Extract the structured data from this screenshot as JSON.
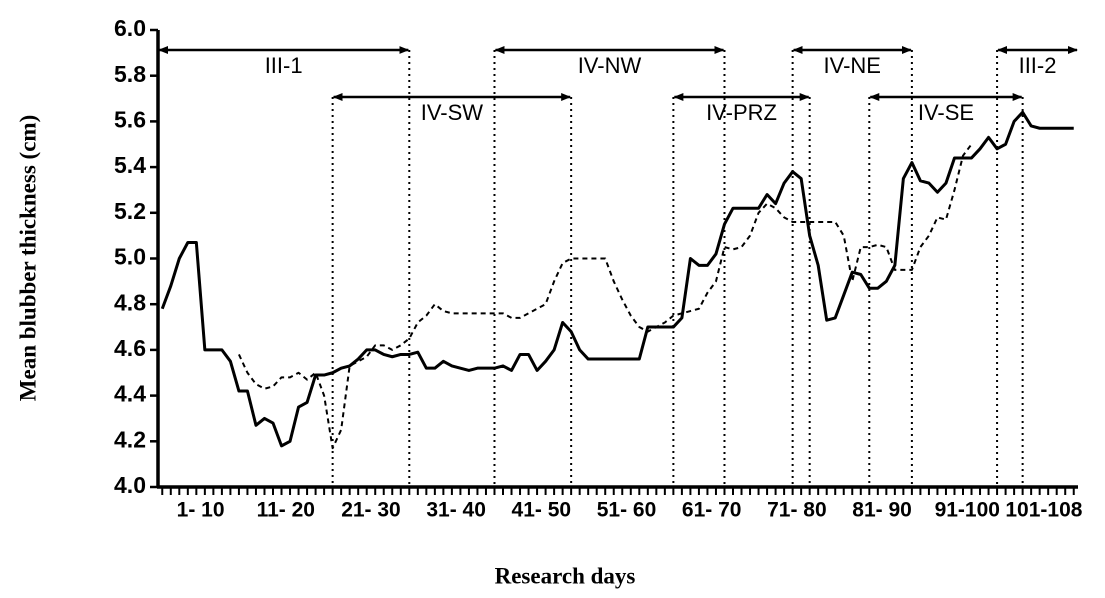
{
  "chart_data": {
    "type": "line",
    "xlabel": "Research days",
    "ylabel": "Mean blubber thickness (cm)",
    "x": [
      1,
      2,
      3,
      4,
      5,
      6,
      7,
      8,
      9,
      10,
      11,
      12,
      13,
      14,
      15,
      16,
      17,
      18,
      19,
      20,
      21,
      22,
      23,
      24,
      25,
      26,
      27,
      28,
      29,
      30,
      31,
      32,
      33,
      34,
      35,
      36,
      37,
      38,
      39,
      40,
      41,
      42,
      43,
      44,
      45,
      46,
      47,
      48,
      49,
      50,
      51,
      52,
      53,
      54,
      55,
      56,
      57,
      58,
      59,
      60,
      61,
      62,
      63,
      64,
      65,
      66,
      67,
      68,
      69,
      70,
      71,
      72,
      73,
      74,
      75,
      76,
      77,
      78,
      79,
      80,
      81,
      82,
      83,
      84,
      85,
      86,
      87,
      88,
      89,
      90,
      91,
      92,
      93,
      94,
      95,
      96,
      97,
      98,
      99,
      100,
      101,
      102,
      103,
      104,
      105,
      106,
      107,
      108
    ],
    "series": [
      {
        "color": "#000000",
        "dashed": false,
        "values": [
          4.78,
          4.88,
          5.0,
          5.07,
          5.07,
          4.6,
          4.6,
          4.6,
          4.55,
          4.42,
          4.42,
          4.27,
          4.3,
          4.28,
          4.18,
          4.2,
          4.35,
          4.37,
          4.49,
          4.49,
          4.5,
          4.52,
          4.53,
          4.56,
          4.6,
          4.6,
          4.58,
          4.57,
          4.58,
          4.58,
          4.59,
          4.52,
          4.52,
          4.55,
          4.53,
          4.52,
          4.51,
          4.52,
          4.52,
          4.52,
          4.53,
          4.51,
          4.58,
          4.58,
          4.51,
          4.55,
          4.6,
          4.72,
          4.68,
          4.6,
          4.56,
          4.56,
          4.56,
          4.56,
          4.56,
          4.56,
          4.56,
          4.7,
          4.7,
          4.7,
          4.7,
          4.74,
          5.0,
          4.97,
          4.97,
          5.02,
          5.15,
          5.22,
          5.22,
          5.22,
          5.22,
          5.28,
          5.24,
          5.33,
          5.38,
          5.35,
          5.1,
          4.97,
          4.73,
          4.74,
          4.84,
          4.94,
          4.93,
          4.87,
          4.87,
          4.9,
          4.97,
          5.35,
          5.42,
          5.34,
          5.33,
          5.29,
          5.33,
          5.44,
          5.44,
          5.44,
          5.48,
          5.53,
          5.48,
          5.5,
          5.6,
          5.64,
          5.58,
          5.57,
          5.57,
          5.57,
          5.57,
          5.57
        ]
      },
      {
        "color": "#000000",
        "dashed": true,
        "values": [
          null,
          null,
          null,
          null,
          null,
          null,
          null,
          null,
          null,
          4.58,
          4.5,
          4.45,
          4.43,
          4.44,
          4.48,
          4.48,
          4.5,
          4.47,
          4.5,
          4.4,
          4.17,
          4.25,
          4.53,
          4.55,
          4.57,
          4.62,
          4.62,
          4.6,
          4.62,
          4.65,
          4.72,
          4.75,
          4.8,
          4.77,
          4.76,
          4.76,
          4.76,
          4.76,
          4.76,
          4.76,
          4.76,
          4.74,
          4.74,
          4.76,
          4.78,
          4.8,
          4.9,
          4.98,
          5.0,
          5.0,
          5.0,
          5.0,
          5.0,
          4.9,
          4.82,
          4.75,
          4.7,
          4.68,
          4.7,
          4.72,
          4.75,
          4.76,
          4.77,
          4.78,
          4.85,
          4.9,
          5.05,
          5.04,
          5.05,
          5.1,
          5.2,
          5.24,
          5.22,
          5.18,
          5.16,
          5.16,
          5.16,
          5.16,
          5.16,
          5.16,
          5.1,
          4.9,
          5.05,
          5.05,
          5.06,
          5.05,
          4.95,
          4.95,
          4.95,
          5.05,
          5.1,
          5.18,
          5.17,
          5.3,
          5.45,
          5.5,
          null,
          null,
          null,
          null,
          null,
          null,
          null,
          null,
          null,
          null,
          null,
          null
        ]
      }
    ],
    "xlim": [
      0.5,
      108.5
    ],
    "xticks": [
      {
        "value": 5.5,
        "label": "1- 10"
      },
      {
        "value": 15.5,
        "label": "11- 20"
      },
      {
        "value": 25.5,
        "label": "21- 30"
      },
      {
        "value": 35.5,
        "label": "31- 40"
      },
      {
        "value": 45.5,
        "label": "41- 50"
      },
      {
        "value": 55.5,
        "label": "51- 60"
      },
      {
        "value": 65.5,
        "label": "61- 70"
      },
      {
        "value": 75.5,
        "label": "71- 80"
      },
      {
        "value": 85.5,
        "label": "81- 90"
      },
      {
        "value": 95.5,
        "label": "91-100"
      },
      {
        "value": 104.5,
        "label": "101-108"
      }
    ],
    "ylim": [
      4.0,
      6.0
    ],
    "yticks": [
      {
        "value": 4.0,
        "label": "4.0"
      },
      {
        "value": 4.2,
        "label": "4.2"
      },
      {
        "value": 4.4,
        "label": "4.4"
      },
      {
        "value": 4.6,
        "label": "4.6"
      },
      {
        "value": 4.8,
        "label": "4.8"
      },
      {
        "value": 5.0,
        "label": "5.0"
      },
      {
        "value": 5.2,
        "label": "5.2"
      },
      {
        "value": 5.4,
        "label": "5.4"
      },
      {
        "value": 5.6,
        "label": "5.6"
      },
      {
        "value": 5.8,
        "label": "5.8"
      },
      {
        "value": 6.0,
        "label": "6.0"
      }
    ],
    "periods": [
      {
        "label": "III-1",
        "start": 0.5,
        "end": 30
      },
      {
        "label": "IV-SW",
        "start": 21,
        "end": 49
      },
      {
        "label": "IV-NW",
        "start": 40,
        "end": 67
      },
      {
        "label": "IV-PRZ",
        "start": 61,
        "end": 77
      },
      {
        "label": "IV-NE",
        "start": 75,
        "end": 89
      },
      {
        "label": "IV-SE",
        "start": 84,
        "end": 102
      },
      {
        "label": "III-2",
        "start": 99,
        "end": 108.5
      }
    ]
  }
}
